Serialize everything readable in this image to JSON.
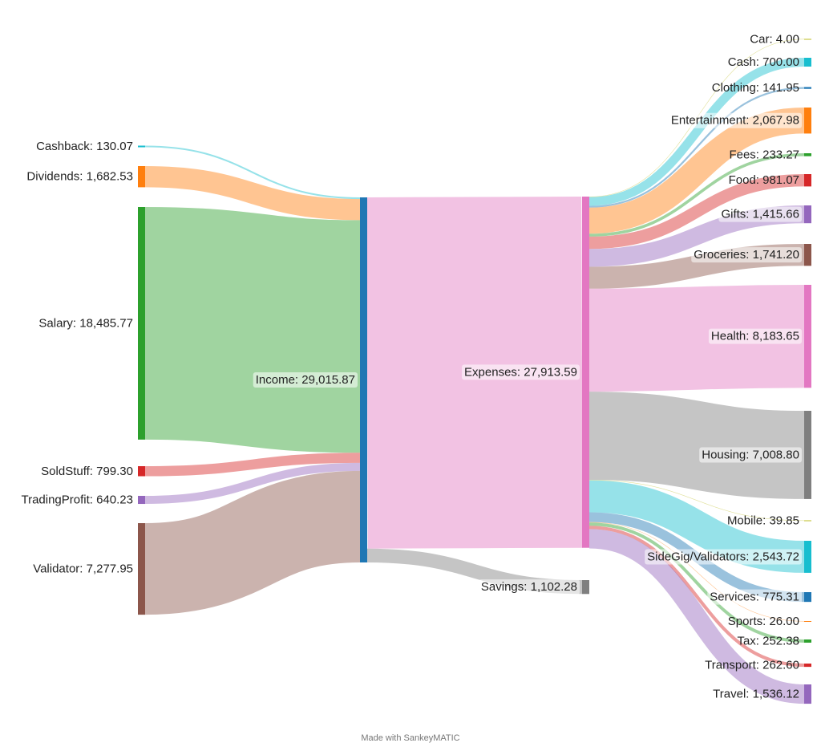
{
  "footer": "Made with SankeyMATIC",
  "chart_data": {
    "type": "sankey",
    "nodes": [
      {
        "id": "cashback",
        "label": "Cashback: 130.07",
        "color": "#17becf",
        "column": 0
      },
      {
        "id": "dividends",
        "label": "Dividends: 1,682.53",
        "color": "#ff7f0e",
        "column": 0
      },
      {
        "id": "salary",
        "label": "Salary: 18,485.77",
        "color": "#2ca02c",
        "column": 0
      },
      {
        "id": "soldstuff",
        "label": "SoldStuff: 799.30",
        "color": "#d62728",
        "column": 0
      },
      {
        "id": "tradingprofit",
        "label": "TradingProfit: 640.23",
        "color": "#9467bd",
        "column": 0
      },
      {
        "id": "validator",
        "label": "Validator: 7,277.95",
        "color": "#8c564b",
        "column": 0
      },
      {
        "id": "income",
        "label": "Income: 29,015.87",
        "color": "#1f77b4",
        "column": 1
      },
      {
        "id": "expenses",
        "label": "Expenses: 27,913.59",
        "color": "#e377c2",
        "column": 2
      },
      {
        "id": "savings",
        "label": "Savings: 1,102.28",
        "color": "#7f7f7f",
        "column": 2
      },
      {
        "id": "car",
        "label": "Car: 4.00",
        "color": "#bcbd22",
        "column": 3
      },
      {
        "id": "cash",
        "label": "Cash: 700.00",
        "color": "#17becf",
        "column": 3
      },
      {
        "id": "clothing",
        "label": "Clothing: 141.95",
        "color": "#1f77b4",
        "column": 3
      },
      {
        "id": "entertainment",
        "label": "Entertainment: 2,067.98",
        "color": "#ff7f0e",
        "column": 3
      },
      {
        "id": "fees",
        "label": "Fees: 233.27",
        "color": "#2ca02c",
        "column": 3
      },
      {
        "id": "food",
        "label": "Food: 981.07",
        "color": "#d62728",
        "column": 3
      },
      {
        "id": "gifts",
        "label": "Gifts: 1,415.66",
        "color": "#9467bd",
        "column": 3
      },
      {
        "id": "groceries",
        "label": "Groceries: 1,741.20",
        "color": "#8c564b",
        "column": 3
      },
      {
        "id": "health",
        "label": "Health: 8,183.65",
        "color": "#e377c2",
        "column": 3
      },
      {
        "id": "housing",
        "label": "Housing: 7,008.80",
        "color": "#7f7f7f",
        "column": 3
      },
      {
        "id": "mobile",
        "label": "Mobile: 39.85",
        "color": "#bcbd22",
        "column": 3
      },
      {
        "id": "sidegig",
        "label": "SideGig/Validators: 2,543.72",
        "color": "#17becf",
        "column": 3
      },
      {
        "id": "services",
        "label": "Services: 775.31",
        "color": "#1f77b4",
        "column": 3
      },
      {
        "id": "sports",
        "label": "Sports: 26.00",
        "color": "#ff7f0e",
        "column": 3
      },
      {
        "id": "tax",
        "label": "Tax: 252.38",
        "color": "#2ca02c",
        "column": 3
      },
      {
        "id": "transport",
        "label": "Transport: 262.60",
        "color": "#d62728",
        "column": 3
      },
      {
        "id": "travel",
        "label": "Travel: 1,536.12",
        "color": "#9467bd",
        "column": 3
      }
    ],
    "flows": [
      {
        "from": "cashback",
        "to": "income",
        "value": 130.07
      },
      {
        "from": "dividends",
        "to": "income",
        "value": 1682.53
      },
      {
        "from": "salary",
        "to": "income",
        "value": 18485.77
      },
      {
        "from": "soldstuff",
        "to": "income",
        "value": 799.3
      },
      {
        "from": "tradingprofit",
        "to": "income",
        "value": 640.23
      },
      {
        "from": "validator",
        "to": "income",
        "value": 7277.95
      },
      {
        "from": "income",
        "to": "expenses",
        "value": 27913.59
      },
      {
        "from": "income",
        "to": "savings",
        "value": 1102.28
      },
      {
        "from": "expenses",
        "to": "car",
        "value": 4.0
      },
      {
        "from": "expenses",
        "to": "cash",
        "value": 700.0
      },
      {
        "from": "expenses",
        "to": "clothing",
        "value": 141.95
      },
      {
        "from": "expenses",
        "to": "entertainment",
        "value": 2067.98
      },
      {
        "from": "expenses",
        "to": "fees",
        "value": 233.27
      },
      {
        "from": "expenses",
        "to": "food",
        "value": 981.07
      },
      {
        "from": "expenses",
        "to": "gifts",
        "value": 1415.66
      },
      {
        "from": "expenses",
        "to": "groceries",
        "value": 1741.2
      },
      {
        "from": "expenses",
        "to": "health",
        "value": 8183.65
      },
      {
        "from": "expenses",
        "to": "housing",
        "value": 7008.8
      },
      {
        "from": "expenses",
        "to": "mobile",
        "value": 39.85
      },
      {
        "from": "expenses",
        "to": "sidegig",
        "value": 2543.72
      },
      {
        "from": "expenses",
        "to": "services",
        "value": 775.31
      },
      {
        "from": "expenses",
        "to": "sports",
        "value": 26.0
      },
      {
        "from": "expenses",
        "to": "tax",
        "value": 252.38
      },
      {
        "from": "expenses",
        "to": "transport",
        "value": 262.6
      },
      {
        "from": "expenses",
        "to": "travel",
        "value": 1536.12
      }
    ]
  }
}
